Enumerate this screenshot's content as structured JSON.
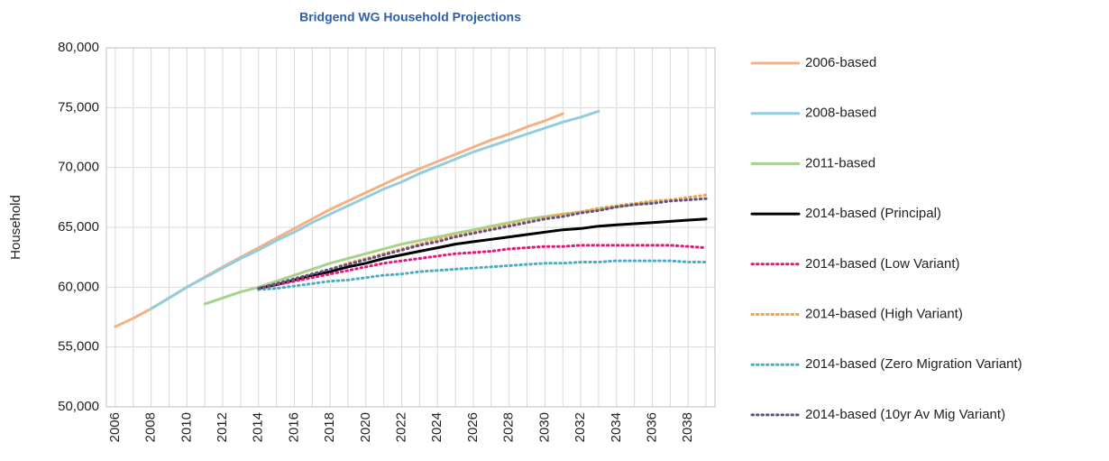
{
  "chart_data": {
    "type": "line",
    "title": "Bridgend WG Household Projections",
    "y_label": "Household",
    "categories": [
      "2006",
      null,
      "2008",
      null,
      "2010",
      null,
      "2012",
      null,
      "2014",
      null,
      "2016",
      null,
      "2018",
      null,
      "2020",
      null,
      "2022",
      null,
      "2024",
      null,
      "2026",
      null,
      "2028",
      null,
      "2030",
      null,
      "2032",
      null,
      "2034",
      null,
      "2036",
      null,
      "2038",
      null
    ],
    "ylim": [
      50000,
      80000
    ],
    "yticks": [
      {
        "value": 50000,
        "label": "50,000"
      },
      {
        "value": 55000,
        "label": "55,000"
      },
      {
        "value": 60000,
        "label": "60,000"
      },
      {
        "value": 65000,
        "label": "65,000"
      },
      {
        "value": 70000,
        "label": "70,000"
      },
      {
        "value": 75000,
        "label": "75,000"
      },
      {
        "value": 80000,
        "label": "80,000"
      }
    ],
    "grid": true,
    "legend": "right",
    "series": [
      {
        "name": "2006-based",
        "color": "#f4b183",
        "style": "solid",
        "values": [
          56700,
          57400,
          58200,
          59100,
          60000,
          60850,
          61700,
          62500,
          63300,
          64100,
          64900,
          65700,
          66500,
          67200,
          67900,
          68600,
          69300,
          69900,
          70500,
          71100,
          71700,
          72300,
          72800,
          73400,
          73900,
          74500,
          null,
          null,
          null,
          null,
          null,
          null,
          null,
          null
        ]
      },
      {
        "name": "2008-based",
        "color": "#93cddd",
        "style": "solid",
        "values": [
          null,
          null,
          58200,
          59100,
          60000,
          60800,
          61600,
          62400,
          63100,
          63900,
          64600,
          65400,
          66100,
          66800,
          67500,
          68200,
          68800,
          69500,
          70100,
          70700,
          71300,
          71800,
          72300,
          72800,
          73300,
          73800,
          74200,
          74700,
          null,
          null,
          null,
          null,
          null,
          null
        ]
      },
      {
        "name": "2011-based",
        "color": "#a9d18e",
        "style": "solid",
        "values": [
          null,
          null,
          null,
          null,
          null,
          58600,
          59100,
          59600,
          60000,
          60500,
          61000,
          61500,
          62000,
          62400,
          62800,
          63200,
          63600,
          63900,
          64200,
          64500,
          64800,
          65100,
          65400,
          65700,
          65900,
          66100,
          66300,
          66500,
          66700,
          66900,
          67100,
          null,
          null,
          null
        ]
      },
      {
        "name": "2014-based (Principal)",
        "color": "#000000",
        "style": "solid",
        "values": [
          null,
          null,
          null,
          null,
          null,
          null,
          null,
          null,
          59900,
          60200,
          60600,
          61000,
          61300,
          61700,
          62000,
          62400,
          62700,
          63000,
          63300,
          63600,
          63800,
          64000,
          64200,
          64400,
          64600,
          64800,
          64900,
          65100,
          65200,
          65300,
          65400,
          65500,
          65600,
          65700
        ]
      },
      {
        "name": "2014-based (Low Variant)",
        "color": "#e6177a",
        "style": "dotted",
        "values": [
          null,
          null,
          null,
          null,
          null,
          null,
          null,
          null,
          59900,
          60200,
          60500,
          60800,
          61100,
          61400,
          61700,
          62000,
          62200,
          62400,
          62600,
          62800,
          62900,
          63000,
          63200,
          63300,
          63400,
          63400,
          63500,
          63500,
          63500,
          63500,
          63500,
          63500,
          63400,
          63300
        ]
      },
      {
        "name": "2014-based (High Variant)",
        "color": "#f4a04a",
        "style": "dotted",
        "values": [
          null,
          null,
          null,
          null,
          null,
          null,
          null,
          null,
          59900,
          60300,
          60700,
          61100,
          61500,
          62000,
          62400,
          62800,
          63200,
          63600,
          64000,
          64300,
          64600,
          64900,
          65200,
          65500,
          65800,
          66100,
          66300,
          66600,
          66800,
          67000,
          67200,
          67300,
          67500,
          67700
        ]
      },
      {
        "name": "2014-based (Zero Migration Variant)",
        "color": "#4bacc6",
        "style": "dotted",
        "values": [
          null,
          null,
          null,
          null,
          null,
          null,
          null,
          null,
          59800,
          59900,
          60100,
          60300,
          60500,
          60600,
          60800,
          61000,
          61100,
          61300,
          61400,
          61500,
          61600,
          61700,
          61800,
          61900,
          62000,
          62000,
          62100,
          62100,
          62200,
          62200,
          62200,
          62200,
          62100,
          62100
        ]
      },
      {
        "name": "2014-based (10yr Av Mig Variant)",
        "color": "#5f5286",
        "style": "dotted",
        "values": [
          null,
          null,
          null,
          null,
          null,
          null,
          null,
          null,
          59900,
          60300,
          60700,
          61100,
          61500,
          61900,
          62300,
          62700,
          63100,
          63500,
          63800,
          64200,
          64500,
          64800,
          65100,
          65400,
          65700,
          65900,
          66200,
          66400,
          66700,
          66900,
          67000,
          67200,
          67300,
          67400
        ]
      }
    ]
  }
}
